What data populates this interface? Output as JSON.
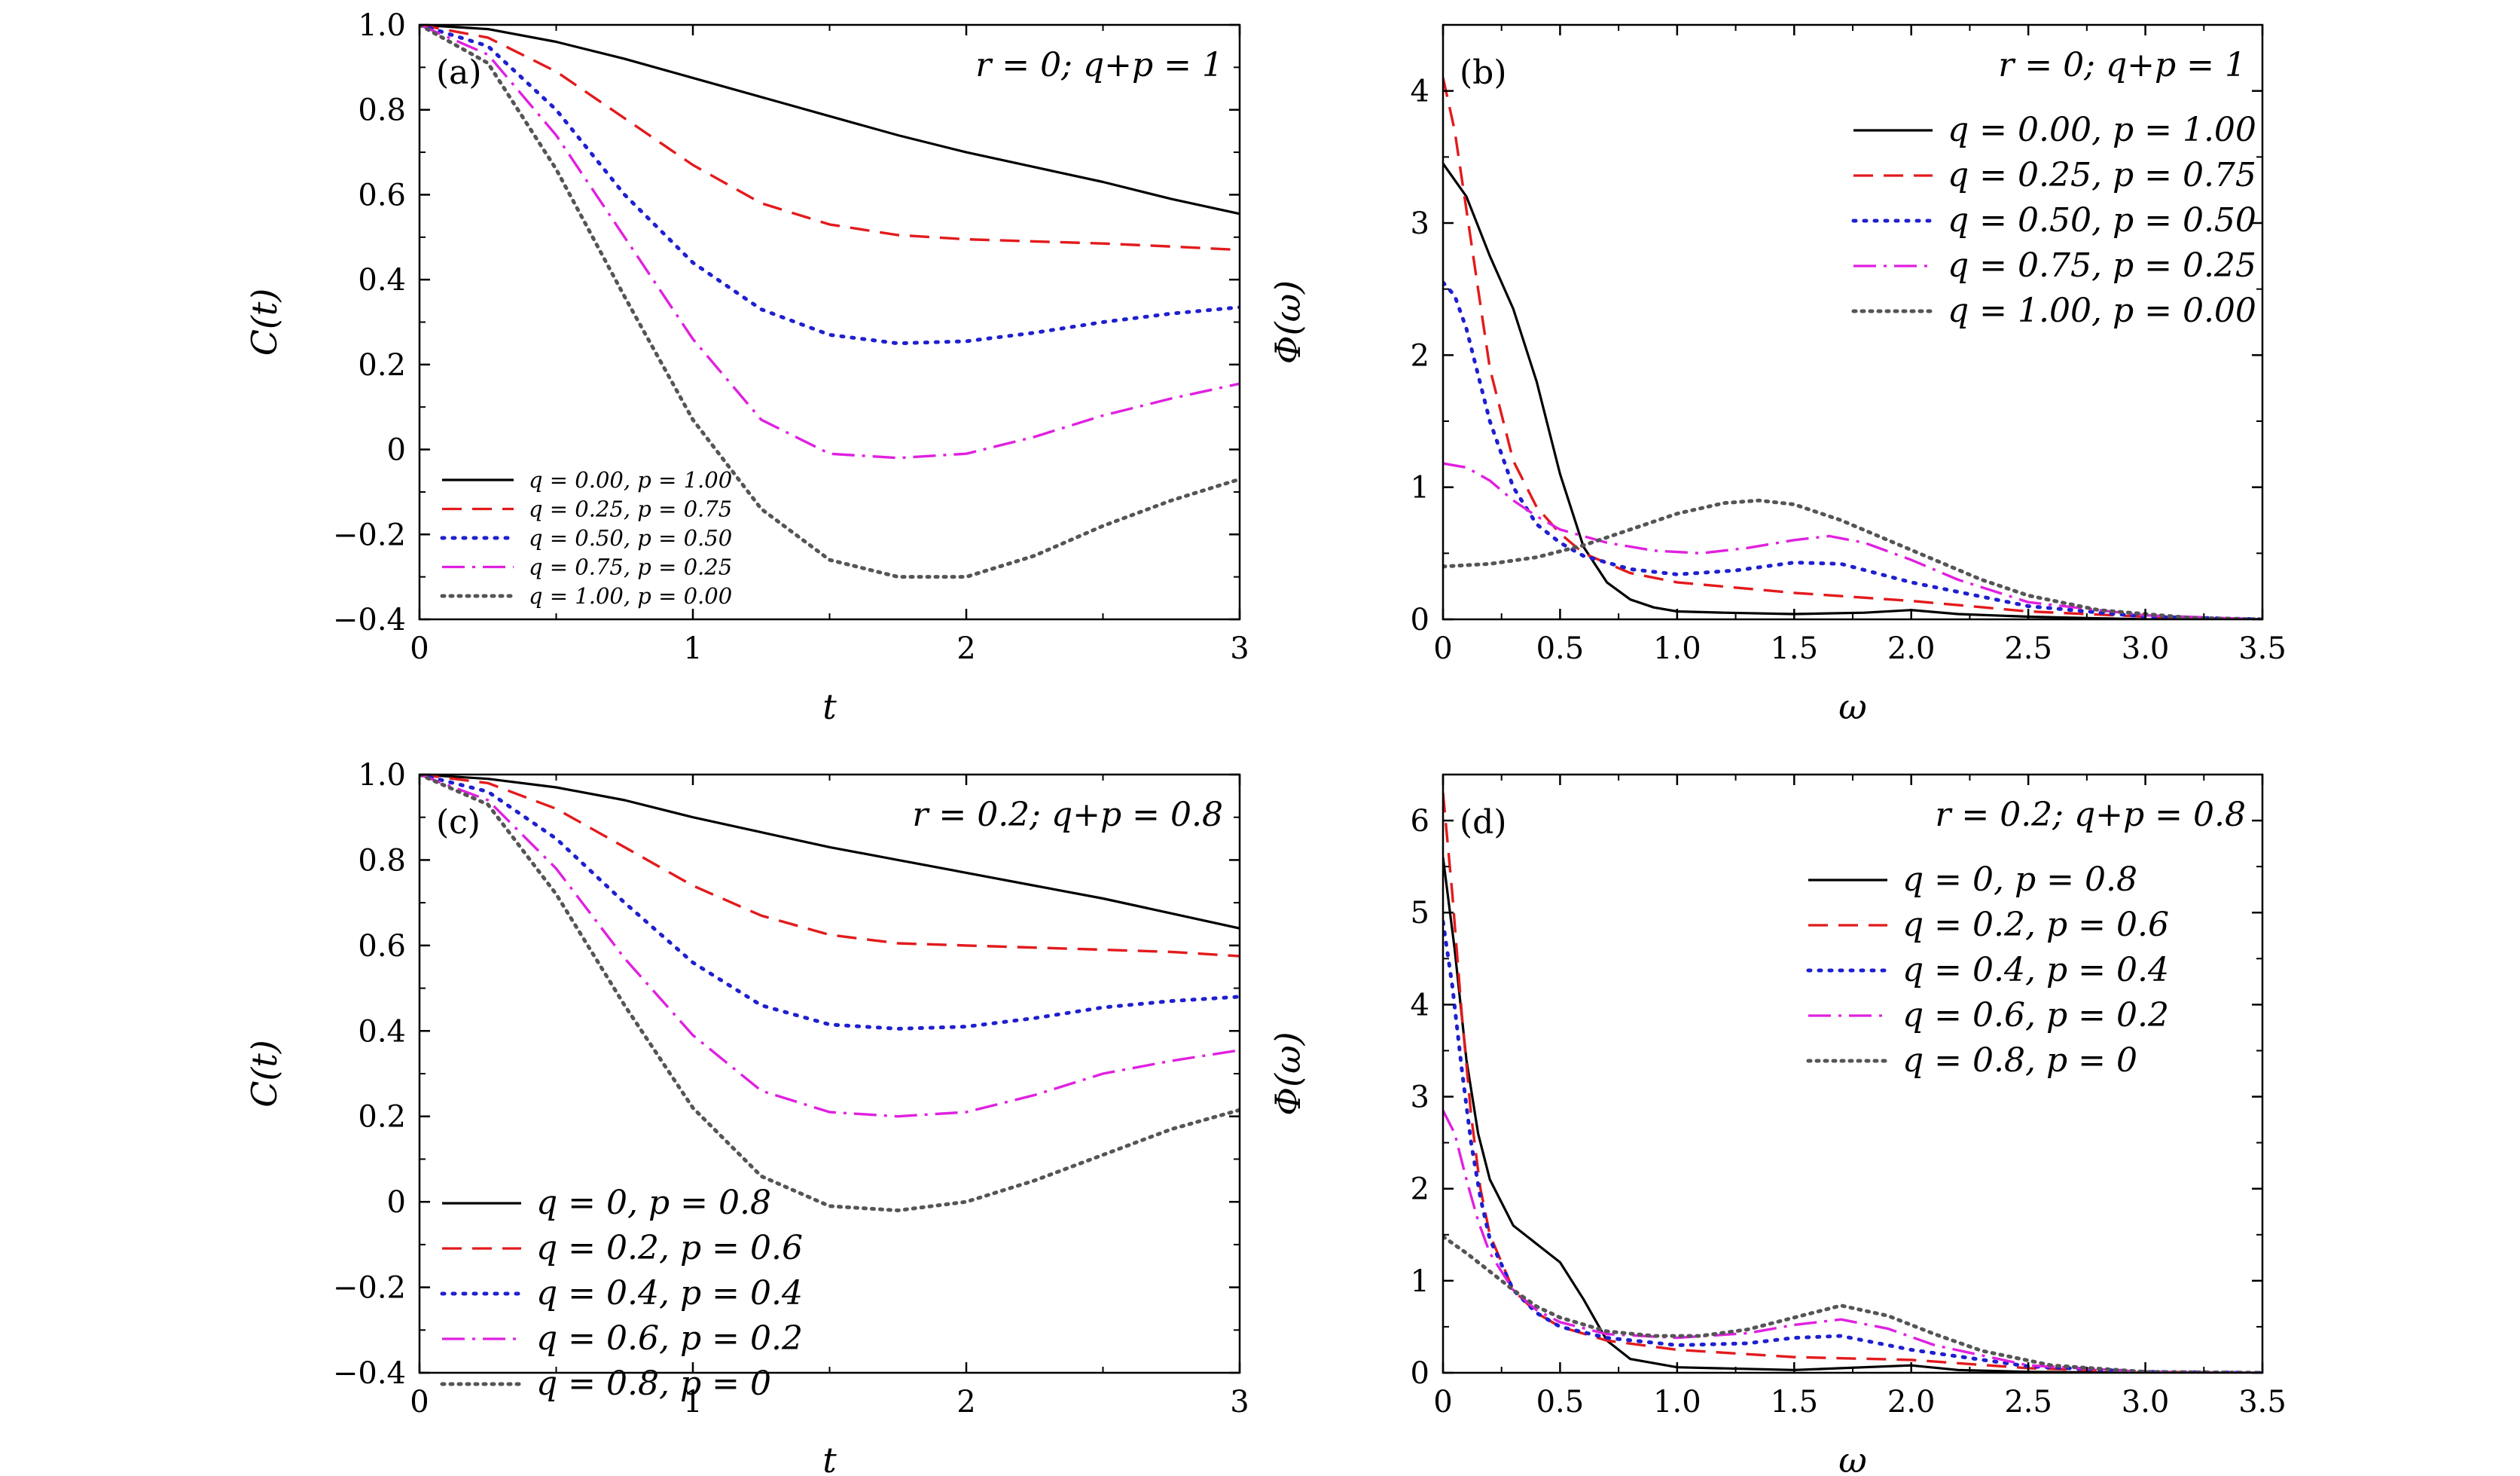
{
  "chart_data": [
    {
      "type": "line",
      "panel_label": "(a)",
      "annotation": "r = 0;  q+p = 1",
      "xlabel": "t",
      "ylabel": "C(t)",
      "xlim": [
        0,
        3
      ],
      "ylim": [
        -0.4,
        1.0
      ],
      "xticks": [
        "0",
        "1",
        "2",
        "3"
      ],
      "yticks": [
        "−0.4",
        "−0.2",
        "0",
        "0.2",
        "0.4",
        "0.6",
        "0.8",
        "1.0"
      ],
      "legend_position": "bottom-left",
      "x": [
        0,
        0.25,
        0.5,
        0.75,
        1.0,
        1.25,
        1.5,
        1.75,
        2.0,
        2.25,
        2.5,
        2.75,
        3.0
      ],
      "series": [
        {
          "name": "q = 0.00, p = 1.00",
          "color": "#000000",
          "dash": "solid",
          "values": [
            1.0,
            0.99,
            0.96,
            0.92,
            0.875,
            0.83,
            0.785,
            0.74,
            0.7,
            0.665,
            0.63,
            0.59,
            0.555
          ]
        },
        {
          "name": "q = 0.25, p = 0.75",
          "color": "#e31a1c",
          "dash": "dashed",
          "values": [
            1.0,
            0.97,
            0.89,
            0.78,
            0.67,
            0.58,
            0.53,
            0.505,
            0.495,
            0.49,
            0.485,
            0.478,
            0.47
          ]
        },
        {
          "name": "q = 0.50, p = 0.50",
          "color": "#1f1fd0",
          "dash": "dotted",
          "values": [
            1.0,
            0.95,
            0.8,
            0.6,
            0.44,
            0.33,
            0.27,
            0.25,
            0.255,
            0.275,
            0.3,
            0.32,
            0.335
          ]
        },
        {
          "name": "q = 0.75, p = 0.25",
          "color": "#e020e0",
          "dash": "dashdot",
          "values": [
            1.0,
            0.93,
            0.74,
            0.5,
            0.26,
            0.07,
            -0.01,
            -0.02,
            -0.01,
            0.03,
            0.08,
            0.12,
            0.155
          ]
        },
        {
          "name": "q = 1.00, p = 0.00",
          "color": "#555555",
          "dash": "densedot",
          "values": [
            1.0,
            0.91,
            0.66,
            0.36,
            0.07,
            -0.14,
            -0.26,
            -0.3,
            -0.3,
            -0.25,
            -0.18,
            -0.12,
            -0.07
          ]
        }
      ]
    },
    {
      "type": "line",
      "panel_label": "(b)",
      "annotation": "r = 0;  q+p = 1",
      "xlabel": "ω",
      "ylabel": "Φ(ω)",
      "xlim": [
        0,
        3.5
      ],
      "ylim": [
        0,
        4.5
      ],
      "xticks": [
        "0",
        "0.5",
        "1.0",
        "1.5",
        "2.0",
        "2.5",
        "3.0",
        "3.5"
      ],
      "yticks": [
        "0",
        "1",
        "2",
        "3",
        "4"
      ],
      "legend_position": "top-right",
      "series": [
        {
          "name": "q = 0.00, p = 1.00",
          "color": "#000000",
          "dash": "solid",
          "x": [
            0,
            0.1,
            0.2,
            0.3,
            0.4,
            0.5,
            0.6,
            0.7,
            0.8,
            0.9,
            1.0,
            1.2,
            1.5,
            1.8,
            2.0,
            2.2,
            2.5,
            3.0,
            3.5
          ],
          "values": [
            3.45,
            3.2,
            2.75,
            2.35,
            1.8,
            1.1,
            0.55,
            0.28,
            0.15,
            0.09,
            0.06,
            0.05,
            0.04,
            0.05,
            0.07,
            0.04,
            0.02,
            0.0,
            0.0
          ]
        },
        {
          "name": "q = 0.25, p = 0.75",
          "color": "#e31a1c",
          "dash": "dashed",
          "x": [
            0,
            0.05,
            0.1,
            0.15,
            0.2,
            0.3,
            0.4,
            0.5,
            0.6,
            0.8,
            1.0,
            1.5,
            2.0,
            2.5,
            3.0,
            3.5
          ],
          "values": [
            4.1,
            3.7,
            3.1,
            2.5,
            1.9,
            1.2,
            0.85,
            0.65,
            0.5,
            0.35,
            0.28,
            0.2,
            0.14,
            0.06,
            0.02,
            0.0
          ]
        },
        {
          "name": "q = 0.50, p = 0.50",
          "color": "#1f1fd0",
          "dash": "dotted",
          "x": [
            0,
            0.05,
            0.1,
            0.15,
            0.2,
            0.3,
            0.4,
            0.5,
            0.6,
            0.8,
            1.0,
            1.25,
            1.5,
            1.7,
            2.0,
            2.5,
            3.0,
            3.5
          ],
          "values": [
            2.55,
            2.45,
            2.2,
            1.85,
            1.5,
            1.0,
            0.72,
            0.58,
            0.48,
            0.38,
            0.34,
            0.37,
            0.43,
            0.42,
            0.28,
            0.1,
            0.02,
            0.0
          ]
        },
        {
          "name": "q = 0.75, p = 0.25",
          "color": "#e020e0",
          "dash": "dashdot",
          "x": [
            0,
            0.1,
            0.2,
            0.3,
            0.4,
            0.5,
            0.7,
            0.9,
            1.1,
            1.3,
            1.5,
            1.65,
            1.8,
            2.0,
            2.2,
            2.5,
            3.0,
            3.5
          ],
          "values": [
            1.18,
            1.15,
            1.05,
            0.9,
            0.78,
            0.68,
            0.58,
            0.52,
            0.5,
            0.54,
            0.6,
            0.63,
            0.58,
            0.45,
            0.3,
            0.13,
            0.03,
            0.0
          ]
        },
        {
          "name": "q = 1.00, p = 0.00",
          "color": "#555555",
          "dash": "densedot",
          "x": [
            0,
            0.2,
            0.4,
            0.6,
            0.8,
            1.0,
            1.2,
            1.35,
            1.5,
            1.7,
            1.9,
            2.1,
            2.3,
            2.5,
            2.8,
            3.2,
            3.5
          ],
          "values": [
            0.4,
            0.42,
            0.47,
            0.56,
            0.68,
            0.8,
            0.88,
            0.9,
            0.87,
            0.75,
            0.6,
            0.45,
            0.3,
            0.18,
            0.07,
            0.01,
            0.0
          ]
        }
      ]
    },
    {
      "type": "line",
      "panel_label": "(c)",
      "annotation": "r = 0.2;  q+p = 0.8",
      "xlabel": "t",
      "ylabel": "C(t)",
      "xlim": [
        0,
        3
      ],
      "ylim": [
        -0.4,
        1.0
      ],
      "xticks": [
        "0",
        "1",
        "2",
        "3"
      ],
      "yticks": [
        "−0.4",
        "−0.2",
        "0",
        "0.2",
        "0.4",
        "0.6",
        "0.8",
        "1.0"
      ],
      "legend_position": "bottom-left",
      "x": [
        0,
        0.25,
        0.5,
        0.75,
        1.0,
        1.25,
        1.5,
        1.75,
        2.0,
        2.25,
        2.5,
        2.75,
        3.0
      ],
      "series": [
        {
          "name": "q = 0, p = 0.8",
          "color": "#000000",
          "dash": "solid",
          "values": [
            1.0,
            0.99,
            0.97,
            0.94,
            0.9,
            0.865,
            0.83,
            0.8,
            0.77,
            0.74,
            0.71,
            0.675,
            0.64
          ]
        },
        {
          "name": "q = 0.2, p = 0.6",
          "color": "#e31a1c",
          "dash": "dashed",
          "values": [
            1.0,
            0.98,
            0.92,
            0.83,
            0.74,
            0.67,
            0.625,
            0.605,
            0.6,
            0.595,
            0.59,
            0.585,
            0.575
          ]
        },
        {
          "name": "q = 0.4, p = 0.4",
          "color": "#1f1fd0",
          "dash": "dotted",
          "values": [
            1.0,
            0.96,
            0.85,
            0.7,
            0.56,
            0.46,
            0.415,
            0.405,
            0.41,
            0.43,
            0.455,
            0.47,
            0.48
          ]
        },
        {
          "name": "q = 0.6, p = 0.2",
          "color": "#e020e0",
          "dash": "dashdot",
          "values": [
            1.0,
            0.94,
            0.78,
            0.57,
            0.39,
            0.26,
            0.21,
            0.2,
            0.21,
            0.25,
            0.3,
            0.33,
            0.355
          ]
        },
        {
          "name": "q = 0.8, p = 0",
          "color": "#555555",
          "dash": "densedot",
          "values": [
            1.0,
            0.93,
            0.72,
            0.46,
            0.22,
            0.06,
            -0.01,
            -0.02,
            0.0,
            0.05,
            0.11,
            0.17,
            0.215
          ]
        }
      ]
    },
    {
      "type": "line",
      "panel_label": "(d)",
      "annotation": "r = 0.2;  q+p = 0.8",
      "xlabel": "ω",
      "ylabel": "Φ(ω)",
      "xlim": [
        0,
        3.5
      ],
      "ylim": [
        0,
        6.5
      ],
      "xticks": [
        "0",
        "0.5",
        "1.0",
        "1.5",
        "2.0",
        "2.5",
        "3.0",
        "3.5"
      ],
      "yticks": [
        "0",
        "1",
        "2",
        "3",
        "4",
        "5",
        "6"
      ],
      "legend_position": "top-right",
      "series": [
        {
          "name": "q = 0, p = 0.8",
          "color": "#000000",
          "dash": "solid",
          "x": [
            0,
            0.05,
            0.1,
            0.15,
            0.2,
            0.3,
            0.4,
            0.5,
            0.6,
            0.7,
            0.8,
            1.0,
            1.5,
            2.0,
            2.2,
            2.5,
            3.0,
            3.5
          ],
          "values": [
            5.6,
            4.6,
            3.4,
            2.6,
            2.1,
            1.6,
            1.4,
            1.2,
            0.8,
            0.35,
            0.15,
            0.06,
            0.03,
            0.08,
            0.03,
            0.01,
            0.0,
            0.0
          ]
        },
        {
          "name": "q = 0.2, p = 0.6",
          "color": "#e31a1c",
          "dash": "dashed",
          "x": [
            0,
            0.04,
            0.08,
            0.12,
            0.16,
            0.2,
            0.3,
            0.4,
            0.5,
            0.7,
            1.0,
            1.5,
            2.0,
            2.5,
            3.0,
            3.5
          ],
          "values": [
            6.3,
            5.2,
            3.9,
            2.8,
            2.0,
            1.5,
            0.9,
            0.65,
            0.5,
            0.35,
            0.25,
            0.17,
            0.14,
            0.05,
            0.01,
            0.0
          ]
        },
        {
          "name": "q = 0.4, p = 0.4",
          "color": "#1f1fd0",
          "dash": "dotted",
          "x": [
            0,
            0.04,
            0.08,
            0.12,
            0.16,
            0.2,
            0.3,
            0.4,
            0.5,
            0.7,
            1.0,
            1.3,
            1.5,
            1.7,
            2.0,
            2.5,
            3.0,
            3.5
          ],
          "values": [
            4.9,
            4.2,
            3.3,
            2.5,
            1.9,
            1.45,
            0.9,
            0.65,
            0.5,
            0.38,
            0.3,
            0.32,
            0.38,
            0.4,
            0.25,
            0.07,
            0.01,
            0.0
          ]
        },
        {
          "name": "q = 0.6, p = 0.2",
          "color": "#e020e0",
          "dash": "dashdot",
          "x": [
            0,
            0.05,
            0.1,
            0.15,
            0.2,
            0.3,
            0.4,
            0.5,
            0.7,
            1.0,
            1.3,
            1.5,
            1.7,
            1.9,
            2.1,
            2.5,
            3.0,
            3.5
          ],
          "values": [
            2.85,
            2.6,
            2.1,
            1.65,
            1.3,
            0.9,
            0.68,
            0.55,
            0.42,
            0.38,
            0.43,
            0.52,
            0.58,
            0.48,
            0.3,
            0.08,
            0.01,
            0.0
          ]
        },
        {
          "name": "q = 0.8, p = 0",
          "color": "#555555",
          "dash": "densedot",
          "x": [
            0,
            0.1,
            0.2,
            0.3,
            0.4,
            0.5,
            0.7,
            0.9,
            1.1,
            1.3,
            1.5,
            1.7,
            1.9,
            2.1,
            2.3,
            2.6,
            3.0,
            3.5
          ],
          "values": [
            1.48,
            1.3,
            1.1,
            0.9,
            0.72,
            0.6,
            0.45,
            0.4,
            0.4,
            0.47,
            0.6,
            0.73,
            0.62,
            0.42,
            0.24,
            0.08,
            0.01,
            0.0
          ]
        }
      ]
    }
  ]
}
